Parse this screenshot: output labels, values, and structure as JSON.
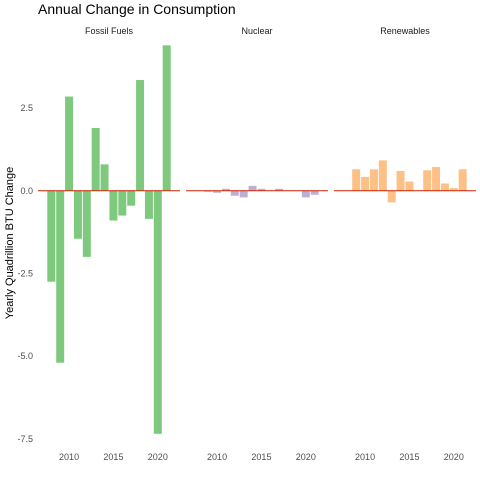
{
  "chart_data": {
    "type": "bar",
    "title": "Annual Change in Consumption",
    "ylabel": "Yearly Quadrillion BTU Change",
    "xlabel": "",
    "ylim": [
      -7.9,
      4.5
    ],
    "y_ticks": [
      2.5,
      0.0,
      -2.5,
      -5.0,
      -7.5
    ],
    "y_tick_labels": [
      "2.5",
      "0.0",
      "-2.5",
      "-5.0",
      "-7.5"
    ],
    "x_ticks": [
      2010,
      2015,
      2020
    ],
    "x_tick_labels": [
      "2010",
      "2015",
      "2020"
    ],
    "xlim": [
      2006.5,
      2022.5
    ],
    "grid": false,
    "zero_line_color": "#cc2200",
    "panels": [
      {
        "name": "Fossil Fuels",
        "color": "#7fc97f",
        "x": [
          2008,
          2009,
          2010,
          2011,
          2012,
          2013,
          2014,
          2015,
          2016,
          2017,
          2018,
          2019,
          2020,
          2021
        ],
        "values": [
          -2.75,
          -5.2,
          2.85,
          -1.45,
          -2.0,
          1.9,
          0.8,
          -0.9,
          -0.75,
          -0.45,
          3.35,
          -0.85,
          -7.35,
          4.4
        ]
      },
      {
        "name": "Nuclear",
        "color": "#beaed4",
        "x": [
          2008,
          2009,
          2010,
          2011,
          2012,
          2013,
          2014,
          2015,
          2016,
          2017,
          2018,
          2019,
          2020,
          2021
        ],
        "values": [
          0.0,
          -0.03,
          -0.06,
          0.06,
          -0.15,
          -0.2,
          0.15,
          0.06,
          0.0,
          0.06,
          0.0,
          0.0,
          -0.2,
          -0.12
        ]
      },
      {
        "name": "Renewables",
        "color": "#fdc086",
        "x": [
          2008,
          2009,
          2010,
          2011,
          2012,
          2013,
          2014,
          2015,
          2016,
          2017,
          2018,
          2019,
          2020,
          2021
        ],
        "values": [
          0.0,
          0.65,
          0.42,
          0.65,
          0.92,
          -0.35,
          0.6,
          0.28,
          0.0,
          0.62,
          0.72,
          0.22,
          0.08,
          0.65
        ]
      }
    ]
  }
}
